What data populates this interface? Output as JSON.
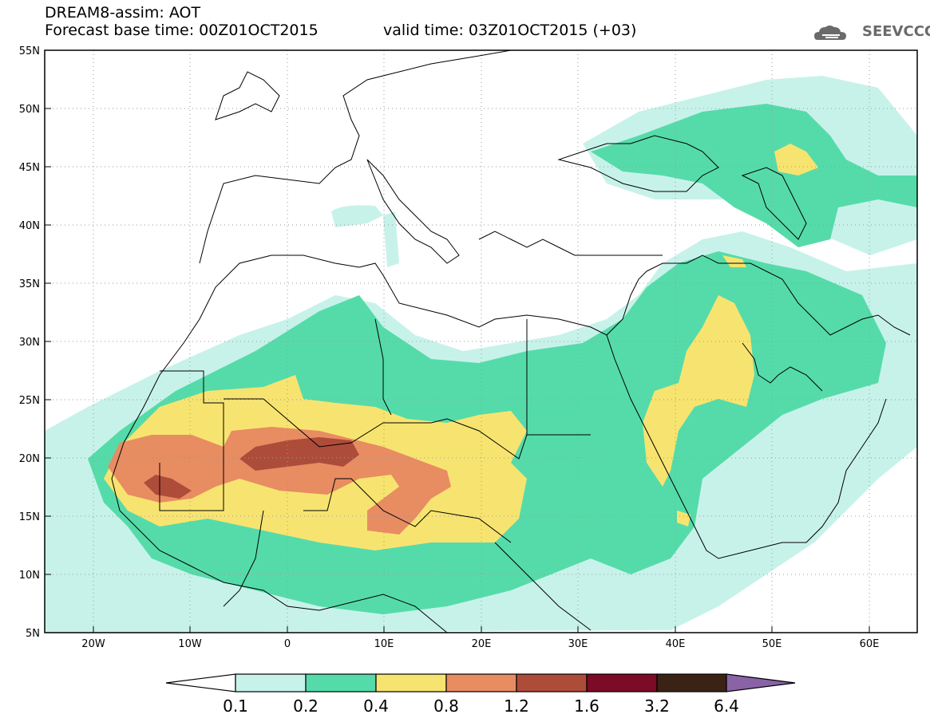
{
  "header": {
    "title": "DREAM8-assim: AOT",
    "forecast_base": "Forecast base time: 00Z01OCT2015",
    "valid_time": "valid time: 03Z01OCT2015 (+03)",
    "logo_text": "SEEVCCC"
  },
  "map": {
    "lon_range": [
      -25,
      65
    ],
    "lat_range": [
      5,
      55
    ],
    "lat_labels": [
      "5N",
      "10N",
      "15N",
      "20N",
      "25N",
      "30N",
      "35N",
      "40N",
      "45N",
      "50N",
      "55N"
    ],
    "lon_labels": [
      "20W",
      "10W",
      "0",
      "10E",
      "20E",
      "30E",
      "40E",
      "50E",
      "60E"
    ],
    "gridlines": "dotted"
  },
  "colorbar": {
    "labels": [
      "0.1",
      "0.2",
      "0.4",
      "0.8",
      "1.2",
      "1.6",
      "3.2",
      "6.4"
    ],
    "colors": [
      "#ffffff",
      "#c7f2ea",
      "#55dba9",
      "#f7e470",
      "#e88c62",
      "#ae4c3a",
      "#7d0a26",
      "#3a2315",
      "#8a62a6"
    ]
  }
}
